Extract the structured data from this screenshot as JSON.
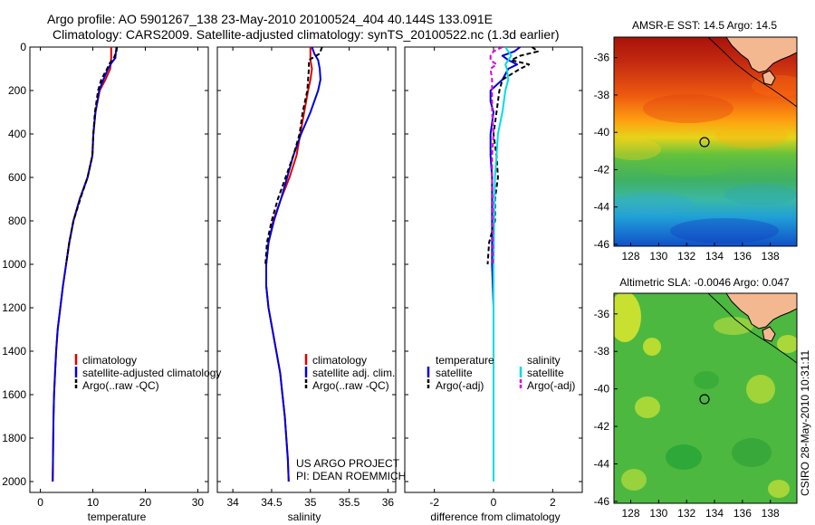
{
  "header": {
    "line1": "Argo profile: AO 5901267_138 23-May-2010 20100524_404 40.144S 133.091E",
    "line2": "Climatology: CARS2009. Satellite-adjusted climatology: synTS_20100522.nc (1.3d earlier)"
  },
  "credit": {
    "vertical": "CSIRO 28-May-2010 10:31:11"
  },
  "colors": {
    "climatology": "#dd0000",
    "satellite": "#0000dd",
    "argo": "#000000",
    "sat_salinity": "#00dddd",
    "argo_salinity": "#dd00dd",
    "land": "#f4b890"
  },
  "chart_data": [
    {
      "type": "line",
      "xlabel": "temperature",
      "ylabel": "",
      "xlim": [
        -2,
        32
      ],
      "ylim": [
        2050,
        0
      ],
      "x_ticks": [
        "0",
        "10",
        "20",
        "30"
      ],
      "y_ticks": [
        "0",
        "200",
        "400",
        "600",
        "800",
        "1000",
        "1200",
        "1400",
        "1600",
        "1800",
        "2000"
      ],
      "legend": [
        "climatology",
        "satellite-adjusted climatology",
        "Argo(..raw -QC)"
      ],
      "series": [
        {
          "name": "climatology",
          "color": "#dd0000",
          "dash": "",
          "depth": [
            0,
            50,
            100,
            150,
            200,
            300,
            400,
            500,
            600,
            700,
            800,
            900,
            1000,
            1100,
            1200,
            1300,
            1400,
            1500,
            1600,
            1700,
            1800,
            1900,
            2000
          ],
          "values": [
            13.5,
            13.5,
            13.3,
            12.4,
            11.3,
            10.5,
            10.1,
            9.9,
            9.0,
            7.5,
            6.3,
            5.5,
            4.9,
            4.3,
            3.8,
            3.3,
            3.0,
            2.8,
            2.6,
            2.5,
            2.45,
            2.4,
            2.35
          ]
        },
        {
          "name": "satellite-adjusted climatology",
          "color": "#0000dd",
          "dash": "",
          "depth": [
            0,
            20,
            50,
            75,
            100,
            150,
            200,
            300,
            400,
            500,
            600,
            700,
            800,
            900,
            1000,
            1100,
            1200,
            1300,
            1400,
            1500,
            1600,
            1700,
            1800,
            1900,
            2000
          ],
          "values": [
            14.5,
            14.4,
            14.3,
            13.5,
            12.9,
            12.0,
            11.2,
            10.5,
            10.1,
            9.9,
            9.0,
            7.5,
            6.3,
            5.5,
            4.9,
            4.3,
            3.8,
            3.3,
            3.0,
            2.8,
            2.6,
            2.5,
            2.45,
            2.4,
            2.35
          ]
        },
        {
          "name": "Argo(..raw -QC)",
          "color": "#000000",
          "dash": "5,3",
          "depth": [
            0,
            20,
            50,
            75,
            100,
            150,
            200,
            300,
            400,
            500,
            600,
            700,
            800,
            900,
            1000
          ],
          "values": [
            14.6,
            14.5,
            14.0,
            13.2,
            12.7,
            11.6,
            11.0,
            10.4,
            10.1,
            9.9,
            9.0,
            7.6,
            6.3,
            5.5,
            4.9
          ]
        }
      ]
    },
    {
      "type": "line",
      "xlabel": "salinity",
      "ylabel": "",
      "xlim": [
        33.8,
        36.1
      ],
      "ylim": [
        2050,
        0
      ],
      "x_ticks": [
        "34",
        "34.5",
        "35",
        "35.5",
        "36"
      ],
      "legend": [
        "climatology",
        "satellite adj. clim.",
        "Argo(..raw -QC)"
      ],
      "annotation": [
        "US ARGO PROJECT",
        "PI: DEAN ROEMMICH"
      ],
      "series": [
        {
          "name": "climatology",
          "color": "#dd0000",
          "dash": "",
          "depth": [
            0,
            60,
            100,
            150,
            200,
            300,
            400,
            500,
            600,
            700,
            800,
            900,
            1000,
            1100,
            1200,
            1300,
            1400,
            1500,
            1600,
            1700,
            1800,
            1900,
            2000
          ],
          "values": [
            35.0,
            35.0,
            35.02,
            35.0,
            34.97,
            34.92,
            34.87,
            34.82,
            34.73,
            34.62,
            34.52,
            34.46,
            34.43,
            34.43,
            34.46,
            34.51,
            34.56,
            34.61,
            34.64,
            34.67,
            34.69,
            34.71,
            34.72
          ]
        },
        {
          "name": "satellite adj. clim.",
          "color": "#0000dd",
          "dash": "",
          "depth": [
            0,
            30,
            60,
            100,
            150,
            200,
            300,
            400,
            500,
            600,
            700,
            800,
            900,
            1000,
            1100,
            1200,
            1300,
            1400,
            1500,
            1600,
            1700,
            1800,
            1900,
            2000
          ],
          "values": [
            35.02,
            35.05,
            35.1,
            35.12,
            35.13,
            35.1,
            35.0,
            34.88,
            34.78,
            34.7,
            34.62,
            34.53,
            34.46,
            34.43,
            34.43,
            34.46,
            34.51,
            34.56,
            34.61,
            34.64,
            34.67,
            34.69,
            34.71,
            34.72
          ]
        },
        {
          "name": "Argo(..raw -QC)",
          "color": "#000000",
          "dash": "5,3",
          "depth": [
            0,
            30,
            60,
            100,
            150,
            200,
            300,
            400,
            500,
            600,
            700,
            800,
            900,
            1000
          ],
          "values": [
            35.15,
            35.12,
            34.98,
            34.98,
            34.97,
            34.96,
            34.9,
            34.86,
            34.78,
            34.68,
            34.58,
            34.5,
            34.44,
            34.42
          ]
        }
      ]
    },
    {
      "type": "line",
      "xlabel": "difference from climatology",
      "ylabel": "",
      "xlim": [
        -3,
        3
      ],
      "ylim": [
        2050,
        0
      ],
      "x_ticks": [
        "-2",
        "0",
        "2"
      ],
      "legend_temperature": {
        "title": "temperature",
        "items": [
          "satellite",
          "Argo(-adj)"
        ]
      },
      "legend_salinity": {
        "title": "salinity",
        "items": [
          "satellite",
          "Argo(-adj)"
        ]
      },
      "series": [
        {
          "name": "temperature satellite",
          "color": "#0000dd",
          "dash": "",
          "depth": [
            0,
            20,
            40,
            60,
            80,
            100,
            150,
            200,
            250,
            300,
            400,
            500,
            600,
            700,
            800,
            900,
            1000,
            1200,
            1400,
            1600,
            1800,
            2000
          ],
          "values": [
            0.9,
            0.7,
            0.3,
            0.5,
            0.8,
            0.5,
            0.3,
            -0.1,
            -0.1,
            0.0,
            -0.1,
            -0.1,
            -0.05,
            -0.05,
            -0.05,
            -0.05,
            -0.05,
            0,
            0,
            0,
            0,
            0
          ]
        },
        {
          "name": "temperature Argo(-adj)",
          "color": "#000000",
          "dash": "5,3",
          "depth": [
            0,
            20,
            40,
            60,
            80,
            100,
            150,
            200,
            300,
            400,
            500,
            600,
            700,
            800,
            900,
            1000
          ],
          "values": [
            1.3,
            1.5,
            0.9,
            0.6,
            1.2,
            0.9,
            0.3,
            0.2,
            0.1,
            0.0,
            0.1,
            0.15,
            0.05,
            0.05,
            -0.15,
            -0.2
          ]
        },
        {
          "name": "salinity satellite",
          "color": "#00dddd",
          "dash": "",
          "depth": [
            0,
            20,
            40,
            60,
            80,
            100,
            150,
            200,
            300,
            400,
            500,
            600,
            800,
            1000,
            1200,
            1400,
            1600,
            1800,
            2000
          ],
          "values": [
            0.4,
            0.5,
            0.6,
            0.5,
            0.4,
            0.45,
            0.5,
            0.4,
            0.3,
            0.15,
            0.1,
            0.05,
            0.02,
            0.0,
            0,
            0,
            0,
            0,
            0
          ]
        },
        {
          "name": "salinity Argo(-adj)",
          "color": "#dd00dd",
          "dash": "5,3",
          "depth": [
            0,
            20,
            40,
            60,
            80,
            100,
            150,
            200,
            300,
            400,
            500,
            600,
            700,
            800,
            900,
            1000
          ],
          "values": [
            0.3,
            0.0,
            -0.1,
            -0.1,
            0.1,
            -0.1,
            -0.05,
            -0.05,
            -0.05,
            0.0,
            -0.05,
            -0.05,
            -0.03,
            -0.03,
            -0.02,
            -0.02
          ]
        }
      ]
    },
    {
      "type": "heatmap",
      "title": "AMSR-E SST: 14.5 Argo: 14.5",
      "x_ticks": [
        "128",
        "130",
        "132",
        "134",
        "136",
        "138"
      ],
      "y_ticks": [
        "-36",
        "-38",
        "-40",
        "-42",
        "-44",
        "-46"
      ],
      "xlim": [
        126.8,
        139.9
      ],
      "ylim": [
        -34.9,
        -46.1
      ],
      "marker": {
        "lon": 133.091,
        "lat": -40.144
      }
    },
    {
      "type": "heatmap",
      "title": "Altimetric SLA: -0.0046 Argo: 0.047",
      "x_ticks": [
        "128",
        "130",
        "132",
        "134",
        "136",
        "138"
      ],
      "y_ticks": [
        "-36",
        "-38",
        "-40",
        "-42",
        "-44",
        "-46"
      ],
      "xlim": [
        126.8,
        139.9
      ],
      "ylim": [
        -34.9,
        -46.1
      ],
      "marker": {
        "lon": 133.091,
        "lat": -40.144
      }
    }
  ]
}
